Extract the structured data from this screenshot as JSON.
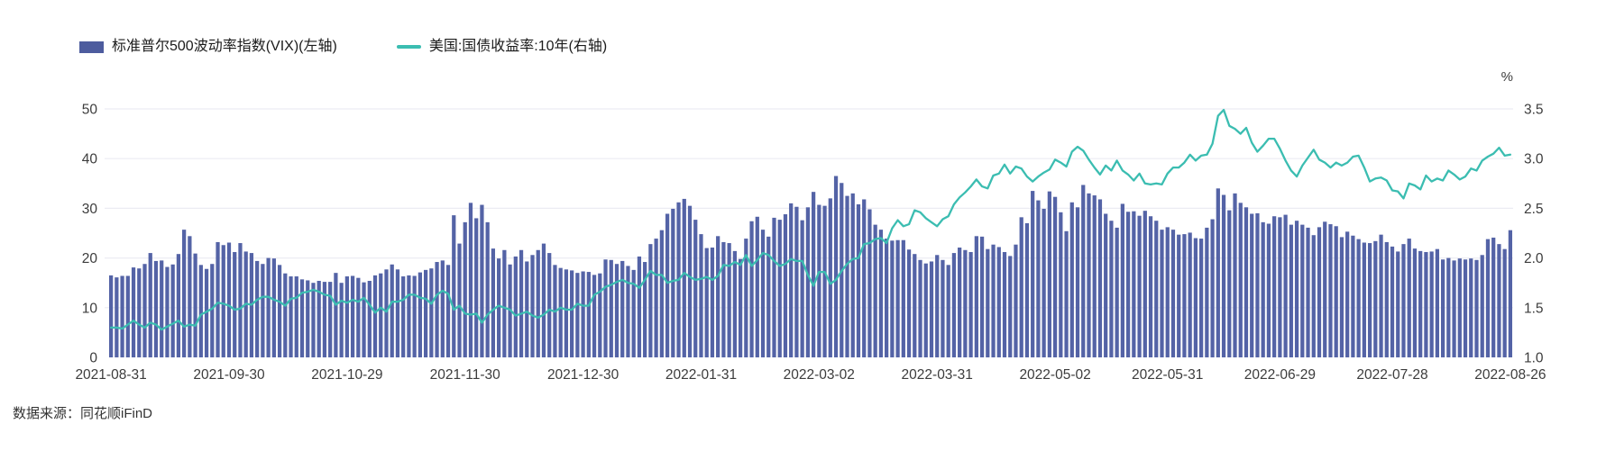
{
  "legend": {
    "items": [
      {
        "label": "标准普尔500波动率指数(VIX)(左轴)",
        "color": "#4d5c9e",
        "type": "bar"
      },
      {
        "label": "美国:国债收益率:10年(右轴)",
        "color": "#3bbdb1",
        "type": "line"
      }
    ]
  },
  "footer": {
    "source": "数据来源：同花顺iFinD"
  },
  "colors": {
    "grid": "#ececf3",
    "axis_text": "#3c3c3c",
    "background": "#ffffff",
    "bar": "#5463a6",
    "line": "#3bbdb1"
  },
  "chart_data": {
    "type": "combo",
    "title": "",
    "grid": true,
    "legend_position": "top-left",
    "left_axis": {
      "label": "标准普尔500波动率指数(VIX)(左轴)",
      "min": 0,
      "max": 50,
      "ticks": [
        0,
        10,
        20,
        30,
        40,
        50
      ]
    },
    "right_axis": {
      "label": "美国:国债收益率:10年(右轴)",
      "unit": "%",
      "min": 1.0,
      "max": 3.5,
      "ticks": [
        "1.0",
        "1.5",
        "2.0",
        "2.5",
        "3.0",
        "3.5"
      ]
    },
    "x_ticks": [
      "2021-08-31",
      "2021-09-30",
      "2021-10-29",
      "2021-11-30",
      "2021-12-30",
      "2022-01-31",
      "2022-03-02",
      "2022-03-31",
      "2022-05-02",
      "2022-05-31",
      "2022-06-29",
      "2022-07-28",
      "2022-08-26"
    ],
    "categories": [
      "2021-08-31",
      "2021-09-01",
      "2021-09-02",
      "2021-09-03",
      "2021-09-07",
      "2021-09-08",
      "2021-09-09",
      "2021-09-10",
      "2021-09-13",
      "2021-09-14",
      "2021-09-15",
      "2021-09-16",
      "2021-09-17",
      "2021-09-20",
      "2021-09-21",
      "2021-09-22",
      "2021-09-23",
      "2021-09-24",
      "2021-09-27",
      "2021-09-28",
      "2021-09-29",
      "2021-09-30",
      "2021-10-01",
      "2021-10-04",
      "2021-10-05",
      "2021-10-06",
      "2021-10-07",
      "2021-10-08",
      "2021-10-11",
      "2021-10-12",
      "2021-10-13",
      "2021-10-14",
      "2021-10-15",
      "2021-10-18",
      "2021-10-19",
      "2021-10-20",
      "2021-10-21",
      "2021-10-22",
      "2021-10-25",
      "2021-10-26",
      "2021-10-27",
      "2021-10-28",
      "2021-10-29",
      "2021-11-01",
      "2021-11-02",
      "2021-11-03",
      "2021-11-04",
      "2021-11-05",
      "2021-11-08",
      "2021-11-09",
      "2021-11-10",
      "2021-11-11",
      "2021-11-12",
      "2021-11-15",
      "2021-11-16",
      "2021-11-17",
      "2021-11-18",
      "2021-11-19",
      "2021-11-22",
      "2021-11-23",
      "2021-11-24",
      "2021-11-26",
      "2021-11-29",
      "2021-11-30",
      "2021-12-01",
      "2021-12-02",
      "2021-12-03",
      "2021-12-06",
      "2021-12-07",
      "2021-12-08",
      "2021-12-09",
      "2021-12-10",
      "2021-12-13",
      "2021-12-14",
      "2021-12-15",
      "2021-12-16",
      "2021-12-17",
      "2021-12-20",
      "2021-12-21",
      "2021-12-22",
      "2021-12-23",
      "2021-12-27",
      "2021-12-28",
      "2021-12-29",
      "2021-12-30",
      "2021-12-31",
      "2022-01-03",
      "2022-01-04",
      "2022-01-05",
      "2022-01-06",
      "2022-01-07",
      "2022-01-10",
      "2022-01-11",
      "2022-01-12",
      "2022-01-13",
      "2022-01-14",
      "2022-01-18",
      "2022-01-19",
      "2022-01-20",
      "2022-01-21",
      "2022-01-24",
      "2022-01-25",
      "2022-01-26",
      "2022-01-27",
      "2022-01-28",
      "2022-01-31",
      "2022-02-01",
      "2022-02-02",
      "2022-02-03",
      "2022-02-04",
      "2022-02-07",
      "2022-02-08",
      "2022-02-09",
      "2022-02-10",
      "2022-02-11",
      "2022-02-14",
      "2022-02-15",
      "2022-02-16",
      "2022-02-17",
      "2022-02-18",
      "2022-02-22",
      "2022-02-23",
      "2022-02-24",
      "2022-02-25",
      "2022-02-28",
      "2022-03-01",
      "2022-03-02",
      "2022-03-03",
      "2022-03-04",
      "2022-03-07",
      "2022-03-08",
      "2022-03-09",
      "2022-03-10",
      "2022-03-11",
      "2022-03-14",
      "2022-03-15",
      "2022-03-16",
      "2022-03-17",
      "2022-03-18",
      "2022-03-21",
      "2022-03-22",
      "2022-03-23",
      "2022-03-24",
      "2022-03-25",
      "2022-03-28",
      "2022-03-29",
      "2022-03-30",
      "2022-03-31",
      "2022-04-01",
      "2022-04-04",
      "2022-04-05",
      "2022-04-06",
      "2022-04-07",
      "2022-04-08",
      "2022-04-11",
      "2022-04-12",
      "2022-04-13",
      "2022-04-14",
      "2022-04-18",
      "2022-04-19",
      "2022-04-20",
      "2022-04-21",
      "2022-04-22",
      "2022-04-25",
      "2022-04-26",
      "2022-04-27",
      "2022-04-28",
      "2022-04-29",
      "2022-05-02",
      "2022-05-03",
      "2022-05-04",
      "2022-05-05",
      "2022-05-06",
      "2022-05-09",
      "2022-05-10",
      "2022-05-11",
      "2022-05-12",
      "2022-05-13",
      "2022-05-16",
      "2022-05-17",
      "2022-05-18",
      "2022-05-19",
      "2022-05-20",
      "2022-05-23",
      "2022-05-24",
      "2022-05-25",
      "2022-05-26",
      "2022-05-27",
      "2022-05-31",
      "2022-06-01",
      "2022-06-02",
      "2022-06-03",
      "2022-06-06",
      "2022-06-07",
      "2022-06-08",
      "2022-06-09",
      "2022-06-10",
      "2022-06-13",
      "2022-06-14",
      "2022-06-15",
      "2022-06-16",
      "2022-06-17",
      "2022-06-21",
      "2022-06-22",
      "2022-06-23",
      "2022-06-24",
      "2022-06-27",
      "2022-06-28",
      "2022-06-29",
      "2022-06-30",
      "2022-07-01",
      "2022-07-05",
      "2022-07-06",
      "2022-07-07",
      "2022-07-08",
      "2022-07-11",
      "2022-07-12",
      "2022-07-13",
      "2022-07-14",
      "2022-07-15",
      "2022-07-18",
      "2022-07-19",
      "2022-07-20",
      "2022-07-21",
      "2022-07-22",
      "2022-07-25",
      "2022-07-26",
      "2022-07-27",
      "2022-07-28",
      "2022-07-29",
      "2022-08-01",
      "2022-08-02",
      "2022-08-03",
      "2022-08-04",
      "2022-08-05",
      "2022-08-08",
      "2022-08-09",
      "2022-08-10",
      "2022-08-11",
      "2022-08-12",
      "2022-08-15",
      "2022-08-16",
      "2022-08-17",
      "2022-08-18",
      "2022-08-19",
      "2022-08-22",
      "2022-08-23",
      "2022-08-24",
      "2022-08-25",
      "2022-08-26"
    ],
    "series": [
      {
        "name": "标准普尔500波动率指数(VIX)(左轴)",
        "type": "bar",
        "axis": "left",
        "color": "#5463a6",
        "values": [
          16.5,
          16.1,
          16.4,
          16.4,
          18.1,
          17.9,
          18.8,
          21.0,
          19.4,
          19.5,
          18.2,
          18.7,
          20.8,
          25.7,
          24.4,
          20.9,
          18.6,
          17.8,
          18.8,
          23.2,
          22.6,
          23.1,
          21.2,
          23.0,
          21.3,
          21.0,
          19.4,
          18.8,
          20.0,
          19.9,
          18.6,
          16.9,
          16.3,
          16.3,
          15.7,
          15.5,
          15.0,
          15.4,
          15.2,
          15.2,
          17.0,
          15.0,
          16.3,
          16.4,
          16.0,
          15.1,
          15.4,
          16.5,
          16.9,
          17.7,
          18.7,
          17.7,
          16.3,
          16.5,
          16.4,
          17.1,
          17.6,
          17.9,
          19.2,
          19.5,
          18.6,
          28.6,
          22.9,
          27.2,
          31.1,
          28.0,
          30.7,
          27.2,
          21.9,
          19.9,
          21.6,
          18.7,
          20.3,
          21.6,
          19.3,
          20.6,
          21.6,
          22.9,
          21.0,
          18.6,
          18.0,
          17.7,
          17.5,
          17.0,
          17.3,
          17.2,
          16.6,
          16.9,
          19.7,
          19.6,
          18.8,
          19.4,
          18.4,
          17.6,
          20.3,
          19.2,
          22.8,
          23.9,
          25.6,
          28.9,
          29.9,
          31.2,
          31.9,
          30.5,
          27.7,
          24.8,
          22.0,
          22.1,
          24.4,
          23.2,
          23.0,
          21.4,
          19.8,
          23.9,
          27.4,
          28.3,
          25.7,
          24.3,
          28.1,
          27.7,
          28.8,
          31.0,
          30.3,
          27.6,
          30.2,
          33.3,
          30.7,
          30.5,
          32.0,
          36.5,
          35.1,
          32.5,
          33.0,
          30.8,
          31.8,
          29.8,
          26.7,
          25.7,
          23.9,
          23.5,
          23.6,
          23.6,
          21.7,
          20.8,
          19.6,
          18.9,
          19.3,
          20.6,
          19.6,
          18.6,
          21.0,
          22.1,
          21.6,
          21.2,
          24.4,
          24.3,
          21.8,
          22.7,
          22.2,
          21.2,
          20.4,
          22.7,
          28.2,
          27.0,
          33.5,
          31.6,
          29.9,
          33.4,
          32.3,
          29.2,
          25.4,
          31.2,
          30.2,
          34.7,
          33.0,
          32.6,
          31.8,
          28.9,
          27.5,
          26.1,
          30.9,
          29.3,
          29.4,
          28.5,
          29.5,
          28.4,
          27.5,
          25.7,
          26.2,
          25.7,
          24.7,
          24.8,
          25.1,
          24.0,
          23.9,
          26.1,
          27.8,
          34.0,
          32.7,
          29.6,
          33.0,
          31.1,
          30.2,
          28.9,
          29.0,
          27.2,
          26.9,
          28.4,
          28.2,
          28.7,
          26.7,
          27.5,
          26.7,
          26.1,
          24.6,
          26.2,
          27.3,
          26.8,
          26.4,
          24.2,
          25.3,
          24.5,
          23.8,
          23.1,
          23.0,
          23.4,
          24.7,
          23.2,
          22.3,
          21.3,
          22.8,
          23.9,
          21.9,
          21.4,
          21.2,
          21.3,
          21.8,
          19.7,
          20.0,
          19.5,
          19.9,
          19.7,
          19.9,
          19.6,
          20.6,
          23.8,
          24.1,
          22.8,
          21.8,
          25.6
        ]
      },
      {
        "name": "美国:国债收益率:10年(右轴)",
        "type": "line",
        "axis": "right",
        "color": "#3bbdb1",
        "values": [
          1.3,
          1.3,
          1.29,
          1.33,
          1.37,
          1.33,
          1.3,
          1.35,
          1.33,
          1.28,
          1.31,
          1.34,
          1.37,
          1.31,
          1.33,
          1.32,
          1.43,
          1.46,
          1.49,
          1.55,
          1.54,
          1.52,
          1.48,
          1.49,
          1.54,
          1.53,
          1.58,
          1.61,
          1.61,
          1.58,
          1.56,
          1.52,
          1.59,
          1.6,
          1.65,
          1.66,
          1.68,
          1.66,
          1.63,
          1.62,
          1.53,
          1.57,
          1.55,
          1.58,
          1.56,
          1.6,
          1.53,
          1.45,
          1.5,
          1.46,
          1.56,
          1.56,
          1.58,
          1.63,
          1.63,
          1.6,
          1.59,
          1.54,
          1.63,
          1.67,
          1.64,
          1.48,
          1.52,
          1.44,
          1.43,
          1.44,
          1.35,
          1.43,
          1.48,
          1.52,
          1.5,
          1.48,
          1.42,
          1.44,
          1.46,
          1.42,
          1.4,
          1.43,
          1.48,
          1.46,
          1.5,
          1.48,
          1.48,
          1.54,
          1.52,
          1.52,
          1.63,
          1.66,
          1.71,
          1.73,
          1.76,
          1.78,
          1.75,
          1.74,
          1.7,
          1.78,
          1.87,
          1.83,
          1.83,
          1.75,
          1.77,
          1.78,
          1.85,
          1.81,
          1.78,
          1.79,
          1.81,
          1.78,
          1.82,
          1.93,
          1.92,
          1.96,
          1.93,
          2.03,
          1.92,
          1.98,
          2.05,
          2.03,
          1.97,
          1.92,
          1.94,
          1.99,
          1.97,
          1.97,
          1.83,
          1.72,
          1.86,
          1.86,
          1.74,
          1.78,
          1.87,
          1.94,
          1.99,
          2.0,
          2.14,
          2.15,
          2.19,
          2.2,
          2.15,
          2.3,
          2.38,
          2.32,
          2.34,
          2.48,
          2.46,
          2.4,
          2.36,
          2.32,
          2.39,
          2.42,
          2.54,
          2.61,
          2.66,
          2.72,
          2.79,
          2.72,
          2.7,
          2.83,
          2.85,
          2.94,
          2.85,
          2.92,
          2.9,
          2.82,
          2.77,
          2.82,
          2.86,
          2.89,
          2.99,
          2.96,
          2.92,
          3.07,
          3.12,
          3.08,
          2.99,
          2.91,
          2.84,
          2.93,
          2.88,
          2.98,
          2.88,
          2.84,
          2.78,
          2.85,
          2.75,
          2.74,
          2.75,
          2.74,
          2.85,
          2.91,
          2.91,
          2.96,
          3.04,
          2.98,
          3.03,
          3.04,
          3.15,
          3.43,
          3.49,
          3.33,
          3.3,
          3.25,
          3.31,
          3.16,
          3.07,
          3.13,
          3.2,
          3.2,
          3.1,
          2.98,
          2.88,
          2.82,
          2.93,
          3.01,
          3.09,
          2.99,
          2.96,
          2.91,
          2.96,
          2.93,
          2.96,
          3.02,
          3.03,
          2.91,
          2.77,
          2.8,
          2.81,
          2.78,
          2.68,
          2.67,
          2.6,
          2.75,
          2.73,
          2.69,
          2.83,
          2.77,
          2.8,
          2.78,
          2.88,
          2.84,
          2.79,
          2.82,
          2.9,
          2.88,
          2.98,
          3.02,
          3.05,
          3.11,
          3.03,
          3.04
        ]
      }
    ]
  }
}
